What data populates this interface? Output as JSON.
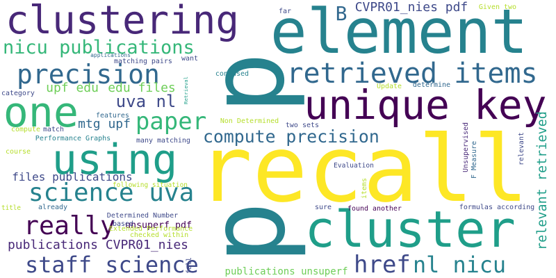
{
  "colors": {
    "background": "#ffffff",
    "palette": [
      "#440154",
      "#482878",
      "#3e4989",
      "#31688e",
      "#26828e",
      "#1f9e89",
      "#35b779",
      "#6ece58",
      "#b5de2b",
      "#fde725"
    ]
  },
  "words": [
    {
      "id": "p",
      "text": "p",
      "color": "#26828e"
    },
    {
      "id": "recall",
      "text": "recall",
      "color": "#fde725"
    },
    {
      "id": "element",
      "text": "element",
      "color": "#26828e"
    },
    {
      "id": "clustering",
      "text": "clustering",
      "color": "#482878"
    },
    {
      "id": "cluster",
      "text": "cluster",
      "color": "#1f9e89"
    },
    {
      "id": "unique-key",
      "text": "unique key",
      "color": "#440154"
    },
    {
      "id": "using",
      "text": "using",
      "color": "#1f9e89"
    },
    {
      "id": "one",
      "text": "one",
      "color": "#35b779"
    },
    {
      "id": "retrieved-items",
      "text": "retrieved items",
      "color": "#31688e"
    },
    {
      "id": "precision",
      "text": "precision",
      "color": "#31688e"
    },
    {
      "id": "paper",
      "text": "paper",
      "color": "#35b779"
    },
    {
      "id": "compute-precision",
      "text": "compute precision",
      "color": "#31688e"
    },
    {
      "id": "science-uva",
      "text": "science uva",
      "color": "#26828e"
    },
    {
      "id": "really",
      "text": "really",
      "color": "#440154"
    },
    {
      "id": "staff-science",
      "text": "staff science",
      "color": "#3e4989"
    },
    {
      "id": "href",
      "text": "href",
      "color": "#3e4989"
    },
    {
      "id": "nl-nicu",
      "text": "nl nicu",
      "color": "#26828e"
    },
    {
      "id": "nicu-publications",
      "text": "nicu publications",
      "color": "#35b779"
    },
    {
      "id": "uva-nl",
      "text": "uva nl",
      "color": "#3e4989"
    },
    {
      "id": "relevant-retrieved",
      "text": "relevant retrieved",
      "color": "#1f9e89"
    },
    {
      "id": "b",
      "text": "B",
      "color": "#31688e"
    },
    {
      "id": "cvpr01-pdf",
      "text": "CVPR01_nies pdf",
      "color": "#3e4989"
    },
    {
      "id": "files-publications",
      "text": "files publications",
      "color": "#3e4989"
    },
    {
      "id": "publications-cvpr",
      "text": "publications CVPR01_nies",
      "color": "#482878"
    },
    {
      "id": "upf-edu",
      "text": "upf edu",
      "color": "#6ece58"
    },
    {
      "id": "edu-files",
      "text": "edu files",
      "color": "#6ece58"
    },
    {
      "id": "mtg-upf",
      "text": "mtg upf",
      "color": "#31688e"
    },
    {
      "id": "unsuperf-pdf",
      "text": "unsuperf pdf",
      "color": "#440154"
    },
    {
      "id": "publications-unsuperf",
      "text": "publications unsuperf",
      "color": "#6ece58"
    },
    {
      "id": "far",
      "text": "far",
      "color": "#3e4989"
    },
    {
      "id": "given-two",
      "text": "Given two",
      "color": "#b5de2b"
    },
    {
      "id": "applications",
      "text": "applications",
      "color": "#31688e"
    },
    {
      "id": "matching-pairs",
      "text": "matching pairs",
      "color": "#3e4989"
    },
    {
      "id": "want",
      "text": "want",
      "color": "#3e4989"
    },
    {
      "id": "retrieval",
      "text": "Retrieval",
      "color": "#1f9e89"
    },
    {
      "id": "confused",
      "text": "confused",
      "color": "#26828e"
    },
    {
      "id": "category",
      "text": "category",
      "color": "#3e4989"
    },
    {
      "id": "update",
      "text": "Update",
      "color": "#b5de2b"
    },
    {
      "id": "determine",
      "text": "determine",
      "color": "#31688e"
    },
    {
      "id": "features",
      "text": "features",
      "color": "#31688e"
    },
    {
      "id": "non-determined",
      "text": "Non Determined",
      "color": "#b5de2b"
    },
    {
      "id": "compute",
      "text": "compute",
      "color": "#b5de2b"
    },
    {
      "id": "match",
      "text": "match",
      "color": "#3e4989"
    },
    {
      "id": "two-sets",
      "text": "two sets",
      "color": "#3e4989"
    },
    {
      "id": "performance-graphs",
      "text": "Performance Graphs",
      "color": "#26828e"
    },
    {
      "id": "many-matching",
      "text": "many matching",
      "color": "#3e4989"
    },
    {
      "id": "unsupervised",
      "text": "Unsupervised",
      "color": "#482878"
    },
    {
      "id": "f-measure",
      "text": "F Measure",
      "color": "#31688e"
    },
    {
      "id": "relevant",
      "text": "relevant",
      "color": "#3e4989"
    },
    {
      "id": "course",
      "text": "course",
      "color": "#b5de2b"
    },
    {
      "id": "evaluation",
      "text": "Evaluation",
      "color": "#3e4989"
    },
    {
      "id": "following-situation",
      "text": "following situation",
      "color": "#b5de2b"
    },
    {
      "id": "items",
      "text": "items",
      "color": "#b5de2b"
    },
    {
      "id": "title",
      "text": "title",
      "color": "#b5de2b"
    },
    {
      "id": "already",
      "text": "already",
      "color": "#31688e"
    },
    {
      "id": "determined-number",
      "text": "Determined Number",
      "color": "#3e4989"
    },
    {
      "id": "sure",
      "text": "sure",
      "color": "#3e4989"
    },
    {
      "id": "found-another",
      "text": "found another",
      "color": "#440154"
    },
    {
      "id": "formulas-according",
      "text": "formulas according",
      "color": "#3e4989"
    },
    {
      "id": "based",
      "text": "based",
      "color": "#3e4989"
    },
    {
      "id": "extended-performance",
      "text": "Extended Performance",
      "color": "#b5de2b"
    },
    {
      "id": "checked-within",
      "text": "checked within",
      "color": "#b5de2b"
    },
    {
      "id": "fall",
      "text": "fall",
      "color": "#3e4989"
    }
  ]
}
